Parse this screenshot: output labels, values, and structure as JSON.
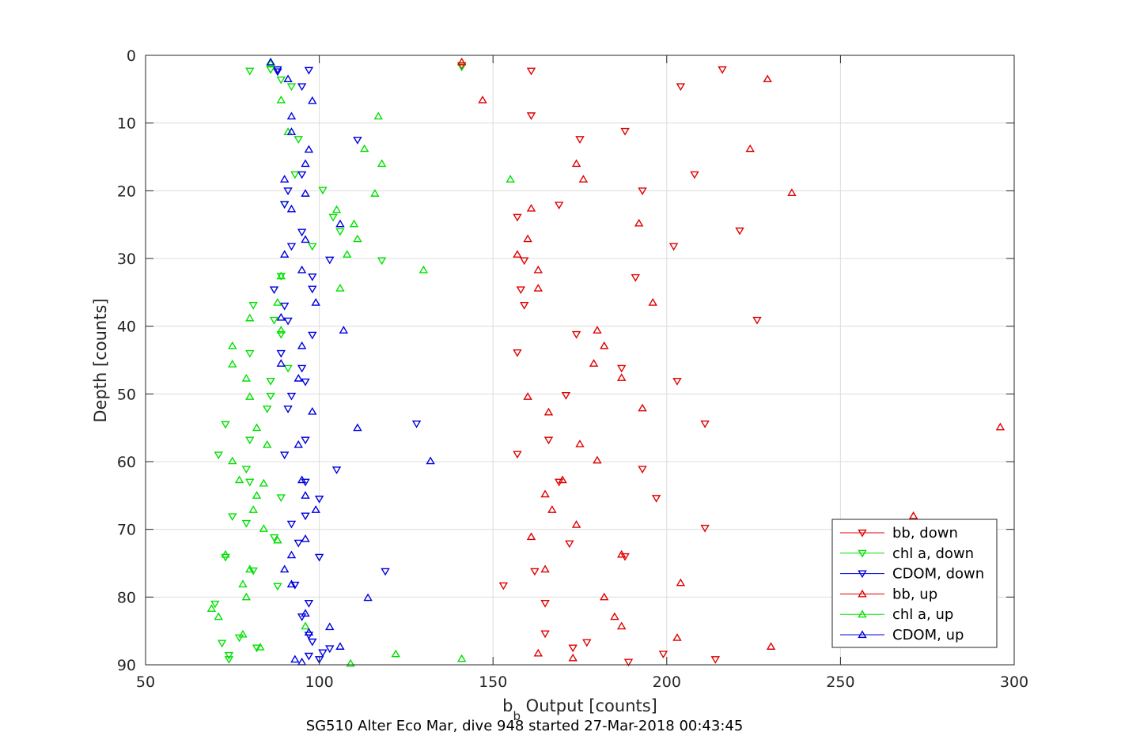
{
  "chart_data": {
    "type": "scatter",
    "title": "SG510 Alter Eco Mar, dive 948 started 27-Mar-2018 00:43:45",
    "xlabel": {
      "main": "b",
      "sub": "b",
      "rest": " Output [counts]"
    },
    "ylabel": "Depth [counts]",
    "xlim": [
      50,
      300
    ],
    "ylim": [
      0,
      90
    ],
    "y_reversed": true,
    "grid": true,
    "legend_position": "bottom-right",
    "xticks": [
      "50",
      "100",
      "150",
      "200",
      "250",
      "300"
    ],
    "yticks": [
      "0",
      "10",
      "20",
      "30",
      "40",
      "50",
      "60",
      "70",
      "80",
      "90"
    ],
    "series": [
      {
        "name": "bb, down",
        "color": "#e00000",
        "marker": "triangle-down",
        "points": [
          [
            141,
            1.5
          ],
          [
            161,
            2.3
          ],
          [
            216,
            2.1
          ],
          [
            204,
            4.6
          ],
          [
            161,
            8.9
          ],
          [
            188,
            11.2
          ],
          [
            175,
            12.4
          ],
          [
            208,
            17.6
          ],
          [
            193,
            20
          ],
          [
            169,
            22.1
          ],
          [
            157,
            23.9
          ],
          [
            221,
            25.9
          ],
          [
            202,
            28.2
          ],
          [
            159,
            30.3
          ],
          [
            191,
            32.8
          ],
          [
            158,
            34.6
          ],
          [
            159,
            36.9
          ],
          [
            226,
            39.1
          ],
          [
            174,
            41.2
          ],
          [
            157,
            43.9
          ],
          [
            187,
            46.2
          ],
          [
            203,
            48.1
          ],
          [
            171,
            50.2
          ],
          [
            211,
            54.4
          ],
          [
            166,
            56.8
          ],
          [
            157,
            58.9
          ],
          [
            193,
            61.1
          ],
          [
            169,
            63
          ],
          [
            197,
            65.4
          ],
          [
            211,
            69.8
          ],
          [
            172,
            72.1
          ],
          [
            188,
            74
          ],
          [
            162,
            76.2
          ],
          [
            153,
            78.3
          ],
          [
            165,
            80.9
          ],
          [
            165,
            85.4
          ],
          [
            177,
            86.7
          ],
          [
            173,
            87.5
          ],
          [
            199,
            88.4
          ],
          [
            214,
            89.2
          ],
          [
            189,
            89.6
          ]
        ]
      },
      {
        "name": "chl a, down",
        "color": "#00e000",
        "marker": "triangle-down",
        "points": [
          [
            141,
            1.7
          ],
          [
            80,
            2.3
          ],
          [
            86,
            2.1
          ],
          [
            89,
            3.6
          ],
          [
            92,
            4.6
          ],
          [
            94,
            12.4
          ],
          [
            93,
            17.6
          ],
          [
            101,
            19.9
          ],
          [
            90,
            22
          ],
          [
            104,
            23.9
          ],
          [
            106,
            26
          ],
          [
            98,
            28.2
          ],
          [
            118,
            30.3
          ],
          [
            89,
            32.6
          ],
          [
            81,
            36.9
          ],
          [
            87,
            39.1
          ],
          [
            89,
            41.2
          ],
          [
            80,
            44
          ],
          [
            91,
            46.2
          ],
          [
            86,
            48.1
          ],
          [
            86,
            50.3
          ],
          [
            85,
            52.2
          ],
          [
            73,
            54.5
          ],
          [
            80,
            56.8
          ],
          [
            71,
            59
          ],
          [
            79,
            61.1
          ],
          [
            80,
            63
          ],
          [
            89,
            65.3
          ],
          [
            75,
            68.1
          ],
          [
            79,
            69.1
          ],
          [
            87,
            71.2
          ],
          [
            73,
            74.1
          ],
          [
            81,
            76.1
          ],
          [
            88,
            78.4
          ],
          [
            70,
            81
          ],
          [
            77,
            86
          ],
          [
            72,
            86.8
          ],
          [
            82,
            87.5
          ],
          [
            74,
            88.6
          ],
          [
            74,
            89.2
          ]
        ]
      },
      {
        "name": "CDOM, down",
        "color": "#0000e0",
        "marker": "triangle-down",
        "points": [
          [
            88,
            2.1
          ],
          [
            97,
            2.2
          ],
          [
            88,
            2.4
          ],
          [
            95,
            4.6
          ],
          [
            111,
            12.5
          ],
          [
            95,
            17.6
          ],
          [
            91,
            20
          ],
          [
            90,
            22
          ],
          [
            95,
            26.1
          ],
          [
            92,
            28.2
          ],
          [
            103,
            30.2
          ],
          [
            98,
            32.7
          ],
          [
            87,
            34.6
          ],
          [
            98,
            34.5
          ],
          [
            90,
            37
          ],
          [
            91,
            39.2
          ],
          [
            98,
            41.3
          ],
          [
            89,
            44
          ],
          [
            95,
            46.2
          ],
          [
            96,
            48.2
          ],
          [
            92,
            50.3
          ],
          [
            91,
            52.2
          ],
          [
            128,
            54.4
          ],
          [
            96,
            56.8
          ],
          [
            90,
            59
          ],
          [
            105,
            61.2
          ],
          [
            96,
            63
          ],
          [
            100,
            65.5
          ],
          [
            96,
            68
          ],
          [
            92,
            69.2
          ],
          [
            94,
            72
          ],
          [
            100,
            74.1
          ],
          [
            119,
            76.2
          ],
          [
            93,
            78.2
          ],
          [
            97,
            80.9
          ],
          [
            95,
            82.9
          ],
          [
            97,
            85.6
          ],
          [
            98,
            86.6
          ],
          [
            101,
            88.2
          ],
          [
            103,
            87.6
          ],
          [
            97,
            88.7
          ],
          [
            100,
            89.2
          ]
        ]
      },
      {
        "name": "bb, up",
        "color": "#e00000",
        "marker": "triangle-up",
        "points": [
          [
            141,
            1
          ],
          [
            229,
            3.5
          ],
          [
            147,
            6.6
          ],
          [
            224,
            13.8
          ],
          [
            174,
            16
          ],
          [
            176,
            18.3
          ],
          [
            236,
            20.3
          ],
          [
            161,
            22.6
          ],
          [
            192,
            24.8
          ],
          [
            160,
            27.1
          ],
          [
            157,
            29.4
          ],
          [
            163,
            31.7
          ],
          [
            163,
            34.4
          ],
          [
            196,
            36.5
          ],
          [
            180,
            40.6
          ],
          [
            182,
            42.9
          ],
          [
            179,
            45.5
          ],
          [
            187,
            47.6
          ],
          [
            160,
            50.4
          ],
          [
            193,
            52.1
          ],
          [
            166,
            52.7
          ],
          [
            296,
            54.9
          ],
          [
            175,
            57.4
          ],
          [
            180,
            59.8
          ],
          [
            170,
            62.7
          ],
          [
            165,
            64.8
          ],
          [
            167,
            67.1
          ],
          [
            271,
            68
          ],
          [
            174,
            69.3
          ],
          [
            161,
            71.1
          ],
          [
            187,
            73.7
          ],
          [
            165,
            75.9
          ],
          [
            204,
            77.9
          ],
          [
            182,
            80
          ],
          [
            185,
            82.9
          ],
          [
            187,
            84.3
          ],
          [
            203,
            86
          ],
          [
            230,
            87.3
          ],
          [
            163,
            88.3
          ],
          [
            173,
            89
          ]
        ]
      },
      {
        "name": "chl a, up",
        "color": "#00e000",
        "marker": "triangle-up",
        "points": [
          [
            86,
            1.2
          ],
          [
            89,
            6.6
          ],
          [
            117,
            9
          ],
          [
            91,
            11.3
          ],
          [
            113,
            13.8
          ],
          [
            118,
            16
          ],
          [
            155,
            18.3
          ],
          [
            116,
            20.4
          ],
          [
            105,
            22.8
          ],
          [
            110,
            24.9
          ],
          [
            111,
            27.1
          ],
          [
            108,
            29.4
          ],
          [
            130,
            31.7
          ],
          [
            89,
            32.6
          ],
          [
            106,
            34.4
          ],
          [
            88,
            36.5
          ],
          [
            80,
            38.8
          ],
          [
            89,
            40.6
          ],
          [
            75,
            42.9
          ],
          [
            75,
            45.6
          ],
          [
            79,
            47.7
          ],
          [
            80,
            50.4
          ],
          [
            82,
            55
          ],
          [
            85,
            57.5
          ],
          [
            75,
            59.9
          ],
          [
            77,
            62.7
          ],
          [
            84,
            63.2
          ],
          [
            82,
            65
          ],
          [
            81,
            67.1
          ],
          [
            84,
            69.9
          ],
          [
            88,
            71.6
          ],
          [
            73,
            73.7
          ],
          [
            80,
            75.9
          ],
          [
            78,
            78.1
          ],
          [
            79,
            80
          ],
          [
            71,
            82.9
          ],
          [
            69,
            81.7
          ],
          [
            78,
            85.5
          ],
          [
            96,
            84.3
          ],
          [
            83,
            87.4
          ],
          [
            122,
            88.4
          ],
          [
            141,
            89.1
          ],
          [
            109,
            89.8
          ]
        ]
      },
      {
        "name": "CDOM, up",
        "color": "#0000e0",
        "marker": "triangle-up",
        "points": [
          [
            86,
            1
          ],
          [
            91,
            3.5
          ],
          [
            98,
            6.7
          ],
          [
            92,
            9
          ],
          [
            92,
            11.3
          ],
          [
            97,
            13.9
          ],
          [
            96,
            16
          ],
          [
            90,
            18.3
          ],
          [
            96,
            20.4
          ],
          [
            92,
            22.7
          ],
          [
            106,
            24.9
          ],
          [
            96,
            27.2
          ],
          [
            90,
            29.4
          ],
          [
            95,
            31.7
          ],
          [
            99,
            36.5
          ],
          [
            89,
            38.7
          ],
          [
            107,
            40.6
          ],
          [
            95,
            42.9
          ],
          [
            89,
            45.5
          ],
          [
            94,
            47.7
          ],
          [
            98,
            52.6
          ],
          [
            111,
            55
          ],
          [
            132,
            59.9
          ],
          [
            94,
            57.5
          ],
          [
            95,
            62.7
          ],
          [
            96,
            65
          ],
          [
            99,
            67.1
          ],
          [
            96,
            71.4
          ],
          [
            92,
            73.8
          ],
          [
            90,
            75.9
          ],
          [
            92,
            78.1
          ],
          [
            114,
            80.1
          ],
          [
            96,
            82.4
          ],
          [
            103,
            84.4
          ],
          [
            97,
            85.2
          ],
          [
            106,
            87.3
          ],
          [
            93,
            89.2
          ],
          [
            95,
            89.6
          ]
        ]
      }
    ]
  }
}
